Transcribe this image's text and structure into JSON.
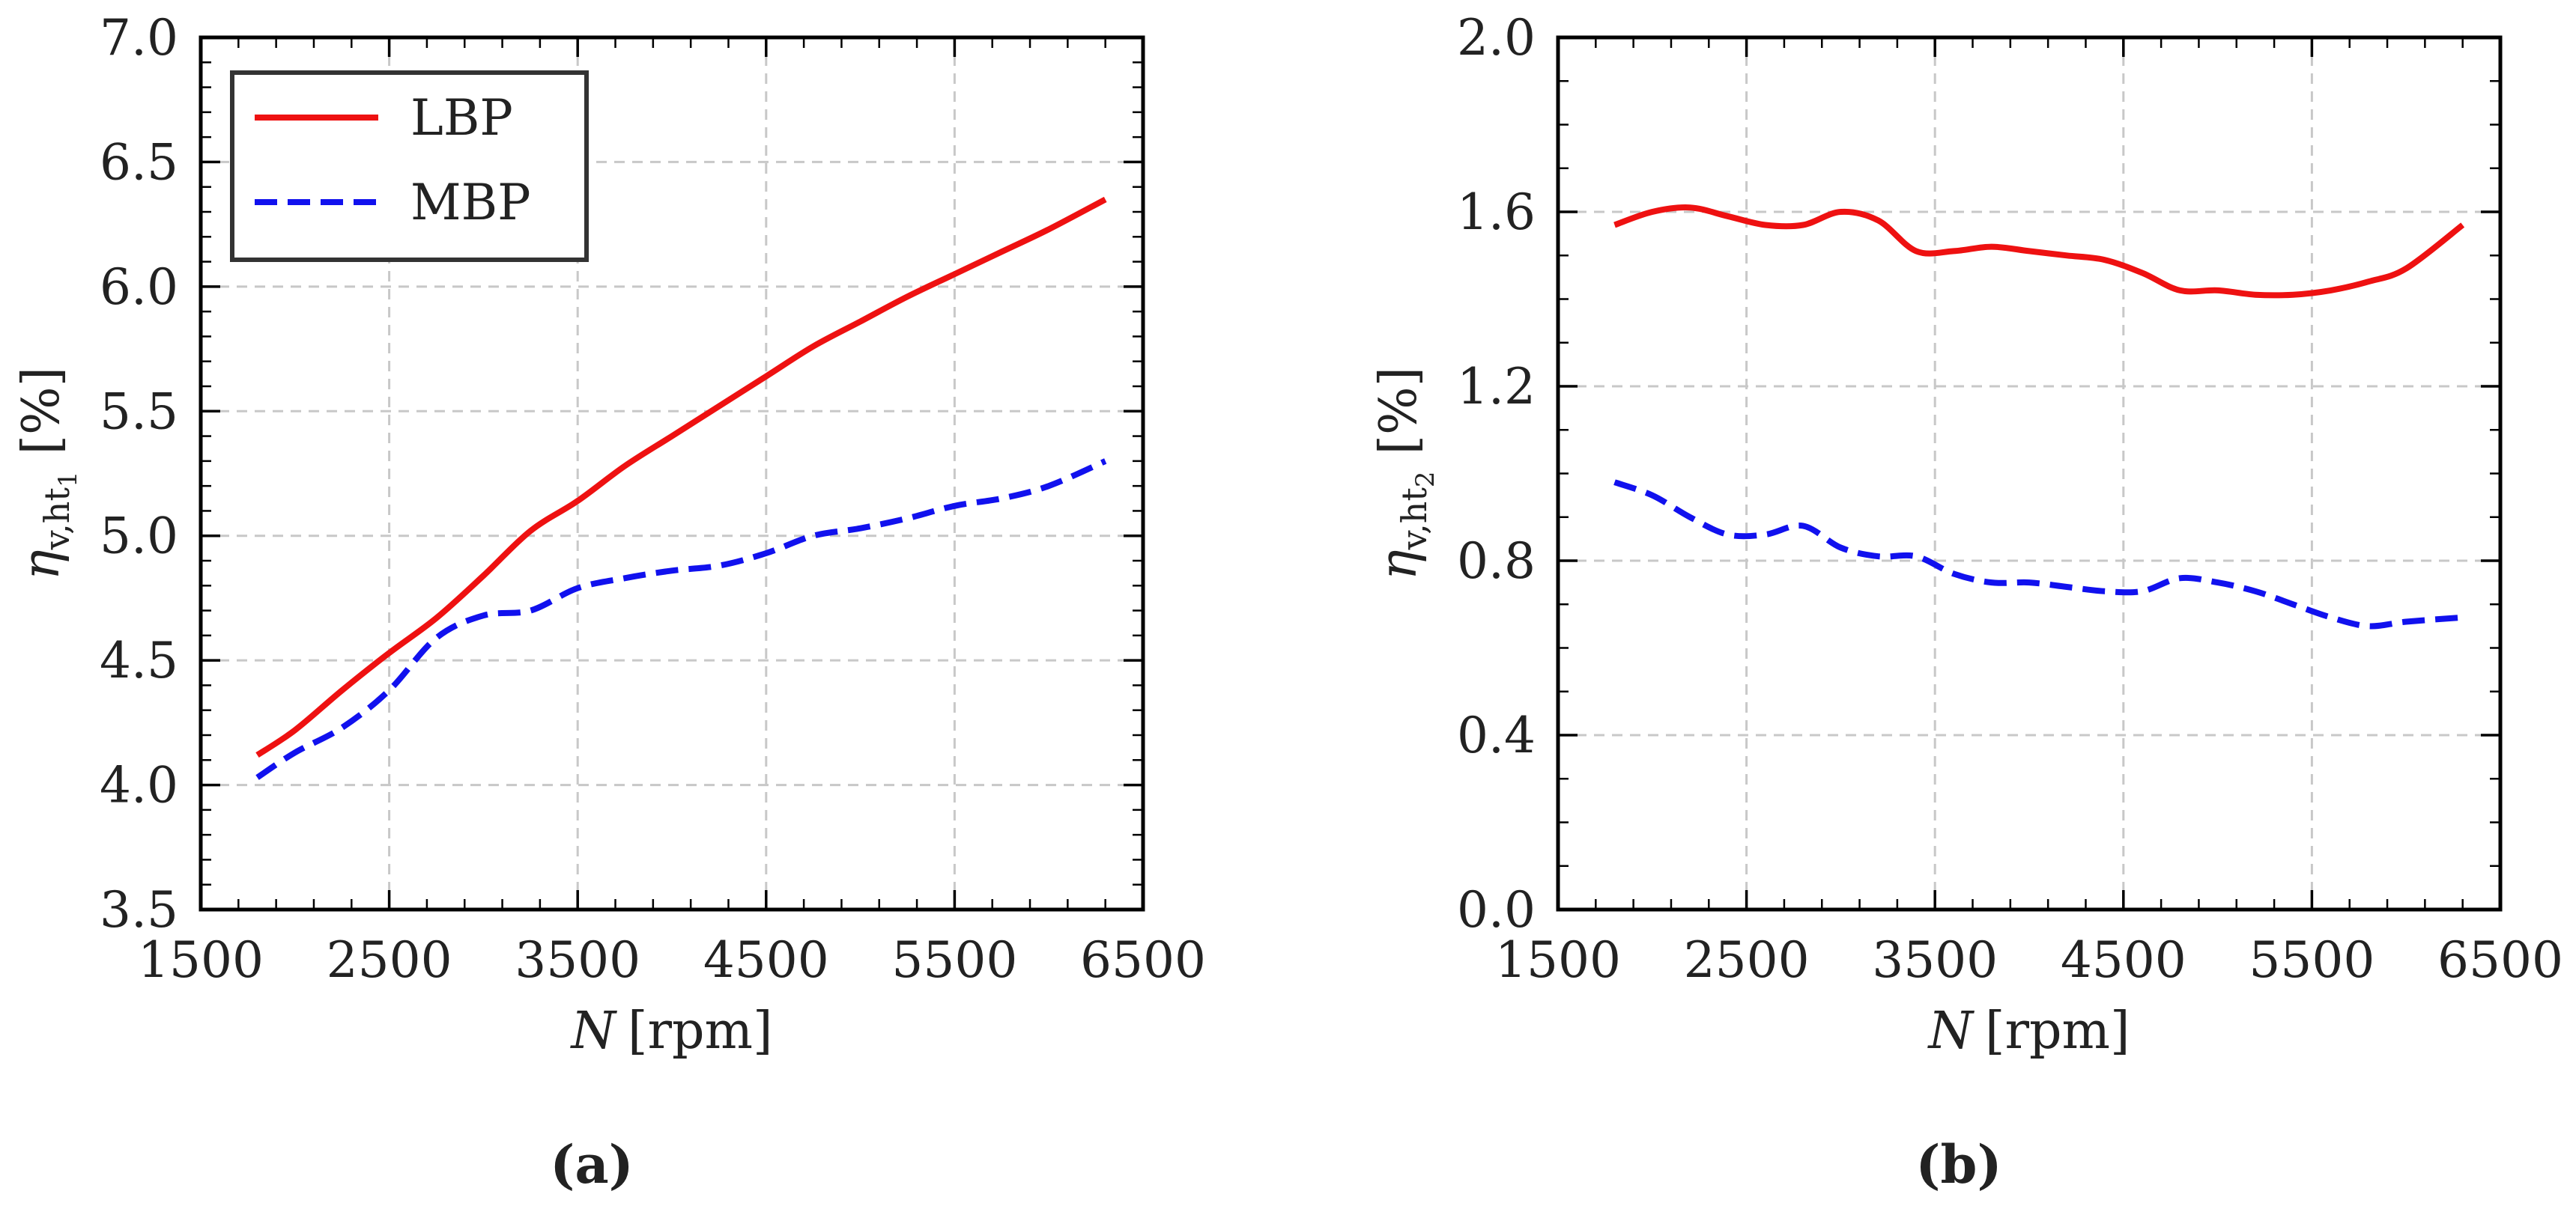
{
  "chart_data": [
    {
      "type": "line",
      "panel": "(a)",
      "caption_letter": "a",
      "xlabel_var": "N",
      "xlabel_unit": "[rpm]",
      "ylabel_symbol": "η",
      "ylabel_sub": "v,ht",
      "ylabel_subsub": "1",
      "ylabel_unit": "[%]",
      "xlim": [
        1500,
        6500
      ],
      "ylim": [
        3.5,
        7.0
      ],
      "xticks": [
        1500,
        2500,
        3500,
        4500,
        5500,
        6500
      ],
      "xtick_labels": [
        "1500",
        "2500",
        "3500",
        "4500",
        "5500",
        "6500"
      ],
      "yticks": [
        3.5,
        4.0,
        4.5,
        5.0,
        5.5,
        6.0,
        6.5,
        7.0
      ],
      "ytick_labels": [
        "3.5",
        "4.0",
        "4.5",
        "5.0",
        "5.5",
        "6.0",
        "6.5",
        "7.0"
      ],
      "legend": "top-left",
      "grid": true,
      "series": [
        {
          "name": "LBP",
          "color": "#ee1111",
          "style": "solid",
          "x": [
            1800,
            2000,
            2250,
            2500,
            2750,
            3000,
            3250,
            3500,
            3750,
            4000,
            4250,
            4500,
            4750,
            5000,
            5250,
            5500,
            5750,
            6000,
            6300
          ],
          "y": [
            4.12,
            4.22,
            4.38,
            4.53,
            4.67,
            4.84,
            5.02,
            5.14,
            5.28,
            5.4,
            5.52,
            5.64,
            5.76,
            5.86,
            5.96,
            6.05,
            6.14,
            6.23,
            6.35
          ]
        },
        {
          "name": "MBP",
          "color": "#1111ee",
          "style": "dashed",
          "x": [
            1800,
            2000,
            2250,
            2500,
            2750,
            3000,
            3250,
            3500,
            3750,
            4000,
            4250,
            4500,
            4750,
            5000,
            5250,
            5500,
            5750,
            6000,
            6300
          ],
          "y": [
            4.03,
            4.13,
            4.23,
            4.38,
            4.59,
            4.68,
            4.7,
            4.79,
            4.83,
            4.86,
            4.88,
            4.93,
            5.0,
            5.03,
            5.07,
            5.12,
            5.15,
            5.2,
            5.3
          ]
        }
      ]
    },
    {
      "type": "line",
      "panel": "(b)",
      "caption_letter": "b",
      "xlabel_var": "N",
      "xlabel_unit": "[rpm]",
      "ylabel_symbol": "η",
      "ylabel_sub": "v,ht",
      "ylabel_subsub": "2",
      "ylabel_unit": "[%]",
      "xlim": [
        1500,
        6500
      ],
      "ylim": [
        0.0,
        2.0
      ],
      "xticks": [
        1500,
        2500,
        3500,
        4500,
        5500,
        6500
      ],
      "xtick_labels": [
        "1500",
        "2500",
        "3500",
        "4500",
        "5500",
        "6500"
      ],
      "yticks": [
        0.0,
        0.4,
        0.8,
        1.2,
        1.6,
        2.0
      ],
      "ytick_labels": [
        "0.0",
        "0.4",
        "0.8",
        "1.2",
        "1.6",
        "2.0"
      ],
      "grid": true,
      "series": [
        {
          "name": "LBP",
          "color": "#ee1111",
          "style": "solid",
          "x": [
            1800,
            2000,
            2200,
            2400,
            2600,
            2800,
            3000,
            3200,
            3400,
            3600,
            3800,
            4000,
            4200,
            4400,
            4600,
            4800,
            5000,
            5200,
            5400,
            5600,
            5800,
            6000,
            6300
          ],
          "y": [
            1.57,
            1.6,
            1.61,
            1.59,
            1.57,
            1.57,
            1.6,
            1.58,
            1.51,
            1.51,
            1.52,
            1.51,
            1.5,
            1.49,
            1.46,
            1.42,
            1.42,
            1.41,
            1.41,
            1.42,
            1.44,
            1.47,
            1.57
          ]
        },
        {
          "name": "MBP",
          "color": "#1111ee",
          "style": "dashed",
          "x": [
            1800,
            2000,
            2200,
            2400,
            2600,
            2800,
            3000,
            3200,
            3400,
            3600,
            3800,
            4000,
            4200,
            4400,
            4600,
            4800,
            5000,
            5200,
            5400,
            5600,
            5800,
            6000,
            6300
          ],
          "y": [
            0.98,
            0.95,
            0.9,
            0.86,
            0.86,
            0.88,
            0.83,
            0.81,
            0.81,
            0.77,
            0.75,
            0.75,
            0.74,
            0.73,
            0.73,
            0.76,
            0.75,
            0.73,
            0.7,
            0.67,
            0.65,
            0.66,
            0.67
          ]
        }
      ]
    }
  ]
}
